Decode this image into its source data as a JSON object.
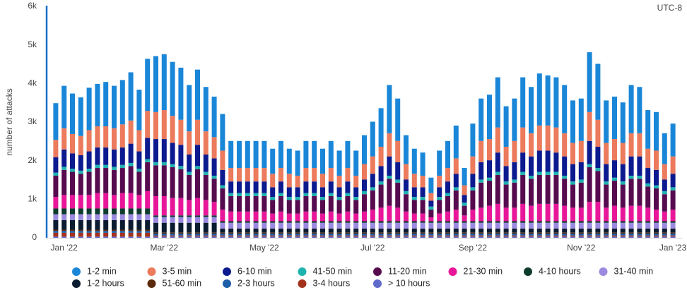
{
  "chart_data": {
    "type": "stacked_bar",
    "timezone": "UTC-8",
    "ylabel": "number of attacks",
    "categories": [
      null,
      "Jan '22",
      null,
      null,
      null,
      null,
      null,
      null,
      null,
      null,
      null,
      null,
      null,
      "Mar '22",
      null,
      null,
      null,
      null,
      null,
      null,
      null,
      null,
      null,
      null,
      null,
      "May '22",
      null,
      null,
      null,
      null,
      null,
      null,
      null,
      null,
      null,
      null,
      null,
      null,
      "Jul '22",
      null,
      null,
      null,
      null,
      null,
      null,
      null,
      null,
      null,
      null,
      null,
      "Sep '22",
      null,
      null,
      null,
      null,
      null,
      null,
      null,
      null,
      null,
      null,
      null,
      null,
      "Nov '22",
      null,
      null,
      null,
      null,
      null,
      null,
      null,
      null,
      null,
      null,
      "Jan '23"
    ],
    "ylim": [
      0,
      6000
    ],
    "yticks": [
      {
        "value": 0,
        "label": "0"
      },
      {
        "value": 1000,
        "label": "1k"
      },
      {
        "value": 2000,
        "label": "2k"
      },
      {
        "value": 3000,
        "label": "3k"
      },
      {
        "value": 4000,
        "label": "4k"
      },
      {
        "value": 5000,
        "label": "5k"
      },
      {
        "value": 6000,
        "label": "6k"
      }
    ],
    "grid": false,
    "series": [
      {
        "name": "1-2 min",
        "color": "#1a86d8",
        "values": [
          950,
          1100,
          1050,
          1000,
          1100,
          1100,
          1150,
          1100,
          1150,
          1250,
          1050,
          1350,
          1450,
          1450,
          1400,
          1350,
          1200,
          1300,
          1150,
          1050,
          950,
          700,
          700,
          700,
          700,
          700,
          650,
          700,
          650,
          650,
          700,
          700,
          650,
          700,
          650,
          700,
          650,
          750,
          900,
          1000,
          1250,
          1100,
          750,
          650,
          600,
          400,
          650,
          700,
          850,
          450,
          850,
          1100,
          1150,
          1300,
          1050,
          1100,
          1300,
          1200,
          1350,
          1300,
          1300,
          1250,
          1100,
          1100,
          1550,
          1450,
          1100,
          1100,
          1050,
          1250,
          1200,
          1000,
          1000,
          800,
          850
        ]
      },
      {
        "name": "3-5 min",
        "color": "#ec7a5c",
        "values": [
          450,
          550,
          500,
          500,
          550,
          550,
          550,
          550,
          600,
          600,
          550,
          700,
          700,
          750,
          700,
          650,
          600,
          650,
          600,
          550,
          500,
          350,
          350,
          350,
          350,
          350,
          350,
          350,
          350,
          300,
          350,
          350,
          350,
          350,
          300,
          350,
          300,
          400,
          450,
          500,
          600,
          550,
          400,
          350,
          300,
          200,
          300,
          350,
          400,
          250,
          450,
          550,
          550,
          650,
          500,
          550,
          650,
          600,
          650,
          650,
          650,
          600,
          550,
          550,
          750,
          700,
          550,
          550,
          550,
          600,
          600,
          500,
          500,
          400,
          450
        ]
      },
      {
        "name": "6-10 min",
        "color": "#0c1a8f",
        "values": [
          400,
          450,
          400,
          400,
          450,
          450,
          450,
          450,
          450,
          500,
          450,
          550,
          600,
          600,
          550,
          550,
          450,
          550,
          450,
          450,
          400,
          300,
          300,
          300,
          300,
          300,
          250,
          300,
          250,
          250,
          300,
          300,
          250,
          300,
          250,
          300,
          250,
          300,
          350,
          400,
          500,
          450,
          300,
          250,
          250,
          150,
          250,
          300,
          350,
          200,
          350,
          450,
          450,
          500,
          400,
          450,
          500,
          500,
          550,
          550,
          500,
          500,
          450,
          450,
          600,
          550,
          450,
          450,
          450,
          500,
          500,
          400,
          400,
          300,
          350
        ]
      },
      {
        "name": "41-50 min",
        "color": "#1fb3b0",
        "values": [
          80,
          80,
          80,
          80,
          80,
          80,
          80,
          80,
          80,
          80,
          80,
          80,
          80,
          80,
          80,
          80,
          80,
          80,
          80,
          80,
          80,
          80,
          80,
          80,
          80,
          80,
          80,
          80,
          80,
          80,
          80,
          80,
          80,
          80,
          80,
          80,
          80,
          80,
          80,
          80,
          80,
          80,
          80,
          80,
          80,
          80,
          80,
          80,
          80,
          80,
          80,
          80,
          80,
          80,
          80,
          80,
          80,
          80,
          80,
          80,
          80,
          80,
          80,
          80,
          80,
          80,
          80,
          80,
          80,
          80,
          80,
          80,
          80,
          80,
          80
        ]
      },
      {
        "name": "11-20 min",
        "color": "#560b4f",
        "values": [
          550,
          650,
          600,
          550,
          600,
          650,
          650,
          650,
          650,
          700,
          600,
          750,
          800,
          800,
          800,
          750,
          650,
          750,
          650,
          600,
          550,
          400,
          400,
          400,
          400,
          400,
          350,
          400,
          350,
          350,
          400,
          400,
          350,
          400,
          350,
          400,
          350,
          450,
          500,
          600,
          700,
          650,
          450,
          350,
          350,
          200,
          350,
          400,
          500,
          250,
          500,
          650,
          650,
          750,
          600,
          650,
          750,
          700,
          750,
          750,
          750,
          700,
          600,
          650,
          900,
          800,
          600,
          650,
          600,
          700,
          700,
          550,
          550,
          450,
          500
        ]
      },
      {
        "name": "21-30 min",
        "color": "#e8179a",
        "values": [
          300,
          350,
          350,
          350,
          350,
          400,
          400,
          350,
          400,
          400,
          350,
          450,
          500,
          500,
          450,
          450,
          400,
          450,
          400,
          350,
          300,
          250,
          250,
          250,
          250,
          250,
          200,
          250,
          200,
          200,
          250,
          250,
          200,
          250,
          200,
          250,
          200,
          250,
          300,
          350,
          400,
          350,
          250,
          200,
          200,
          100,
          200,
          250,
          300,
          150,
          300,
          350,
          400,
          450,
          350,
          350,
          450,
          400,
          450,
          450,
          450,
          400,
          350,
          350,
          500,
          500,
          350,
          400,
          350,
          400,
          400,
          350,
          300,
          250,
          300
        ]
      },
      {
        "name": "4-10 hours",
        "color": "#0d3b2c",
        "values": [
          150,
          150,
          150,
          150,
          150,
          150,
          150,
          150,
          150,
          150,
          150,
          150,
          40,
          40,
          40,
          40,
          40,
          40,
          40,
          40,
          40,
          40,
          40,
          40,
          40,
          40,
          40,
          40,
          40,
          40,
          40,
          40,
          40,
          40,
          40,
          40,
          40,
          40,
          40,
          40,
          40,
          40,
          40,
          40,
          40,
          40,
          40,
          40,
          40,
          40,
          40,
          40,
          40,
          40,
          40,
          40,
          40,
          40,
          40,
          40,
          40,
          40,
          40,
          40,
          40,
          40,
          40,
          40,
          40,
          40,
          40,
          40,
          40,
          40,
          40
        ]
      },
      {
        "name": "31-40 min",
        "color": "#9b8ae0",
        "values": [
          150,
          150,
          150,
          150,
          150,
          150,
          150,
          150,
          150,
          150,
          150,
          150,
          150,
          150,
          150,
          150,
          150,
          150,
          150,
          150,
          150,
          150,
          150,
          150,
          150,
          150,
          150,
          150,
          150,
          150,
          150,
          150,
          150,
          150,
          150,
          150,
          150,
          150,
          150,
          150,
          150,
          150,
          150,
          150,
          150,
          150,
          150,
          150,
          150,
          150,
          150,
          150,
          150,
          150,
          150,
          150,
          150,
          150,
          150,
          150,
          150,
          150,
          150,
          150,
          150,
          150,
          150,
          150,
          150,
          150,
          150,
          150,
          150,
          150,
          150
        ]
      },
      {
        "name": "1-2 hours",
        "color": "#0b1c30",
        "values": [
          250,
          250,
          250,
          250,
          250,
          250,
          250,
          250,
          250,
          250,
          250,
          250,
          250,
          250,
          250,
          250,
          250,
          250,
          250,
          250,
          100,
          100,
          100,
          100,
          100,
          100,
          100,
          100,
          100,
          100,
          100,
          100,
          100,
          100,
          100,
          100,
          100,
          100,
          100,
          100,
          100,
          100,
          100,
          100,
          100,
          100,
          100,
          100,
          100,
          100,
          100,
          100,
          100,
          100,
          100,
          100,
          100,
          100,
          100,
          100,
          100,
          100,
          100,
          100,
          100,
          100,
          100,
          100,
          100,
          100,
          100,
          100,
          100,
          100,
          100
        ]
      },
      {
        "name": "51-60 min",
        "color": "#5b2a0c",
        "values": [
          30,
          30,
          30,
          30,
          30,
          30,
          30,
          30,
          30,
          30,
          30,
          30,
          30,
          30,
          30,
          30,
          30,
          30,
          30,
          30,
          30,
          30,
          30,
          30,
          30,
          30,
          30,
          30,
          30,
          30,
          30,
          30,
          30,
          30,
          30,
          30,
          30,
          30,
          30,
          30,
          30,
          30,
          30,
          30,
          30,
          30,
          30,
          30,
          30,
          30,
          30,
          30,
          30,
          30,
          30,
          30,
          30,
          30,
          30,
          30,
          30,
          30,
          30,
          30,
          30,
          30,
          30,
          30,
          30,
          30,
          30,
          30,
          30,
          30,
          30
        ]
      },
      {
        "name": "2-3 hours",
        "color": "#1d5ea8",
        "values": [
          50,
          50,
          50,
          50,
          50,
          50,
          50,
          50,
          50,
          50,
          50,
          50,
          50,
          50,
          50,
          50,
          50,
          50,
          50,
          50,
          50,
          50,
          50,
          50,
          50,
          50,
          50,
          50,
          50,
          50,
          50,
          50,
          50,
          50,
          50,
          50,
          50,
          50,
          50,
          50,
          50,
          50,
          50,
          50,
          50,
          50,
          50,
          50,
          50,
          50,
          50,
          50,
          50,
          50,
          50,
          50,
          50,
          50,
          50,
          50,
          50,
          50,
          50,
          50,
          50,
          50,
          50,
          50,
          50,
          50,
          50,
          50,
          50,
          50,
          50
        ]
      },
      {
        "name": "3-4 hours",
        "color": "#a3321c",
        "values": [
          100,
          100,
          100,
          100,
          100,
          100,
          100,
          100,
          100,
          100,
          100,
          100,
          30,
          30,
          30,
          30,
          30,
          30,
          30,
          30,
          30,
          30,
          30,
          30,
          30,
          30,
          30,
          30,
          30,
          30,
          30,
          30,
          30,
          30,
          30,
          30,
          30,
          30,
          30,
          30,
          30,
          30,
          30,
          30,
          30,
          30,
          30,
          30,
          30,
          30,
          30,
          30,
          30,
          30,
          30,
          30,
          30,
          30,
          30,
          30,
          30,
          30,
          30,
          30,
          30,
          30,
          30,
          30,
          30,
          30,
          30,
          30,
          30,
          30,
          30
        ]
      },
      {
        "name": "> 10 hours",
        "color": "#5f6acb",
        "values": [
          30,
          30,
          30,
          30,
          30,
          30,
          30,
          30,
          30,
          30,
          30,
          30,
          30,
          30,
          30,
          30,
          30,
          30,
          30,
          30,
          30,
          30,
          30,
          30,
          30,
          30,
          30,
          30,
          30,
          30,
          30,
          30,
          30,
          30,
          30,
          30,
          30,
          30,
          30,
          30,
          30,
          30,
          30,
          30,
          30,
          30,
          30,
          30,
          30,
          30,
          30,
          30,
          30,
          30,
          30,
          30,
          30,
          30,
          30,
          30,
          30,
          30,
          30,
          30,
          30,
          30,
          30,
          30,
          30,
          30,
          30,
          30,
          30,
          30,
          30
        ]
      }
    ]
  }
}
